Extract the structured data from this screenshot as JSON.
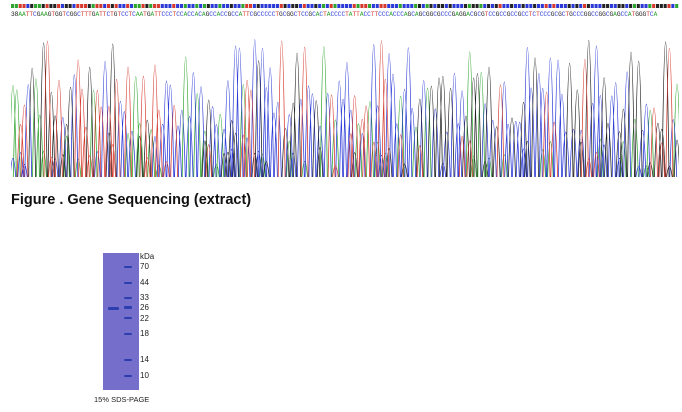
{
  "sequence": {
    "index_label": "38",
    "bases": "AATTCGAAGTGGTCGGCTTTGATTCTGTCCTCAATGATTCCCTCCACCACAGCCACCGCCATTCGCCCCCTGCGGCTCCGCACTACCCCTATTACCTTCCCACCCAGCAGCGGCGCCCGAGGACGCGTCCGCCGCCGCCTCTCCCGCGCTGCCCGGCCGGCGAGCCATGGGTCA",
    "base_colors": {
      "A": "#2fa52f",
      "C": "#2b3ad6",
      "G": "#222222",
      "T": "#d63a2f"
    }
  },
  "figure_caption": "Figure . Gene Sequencing (extract)",
  "gel": {
    "unit_label": "kDa",
    "markers": [
      "70",
      "44",
      "33",
      "26",
      "22",
      "18",
      "14",
      "10"
    ],
    "caption": "15% SDS-PAGE",
    "colors": {
      "background": "#7b74cf",
      "band": "#2d3fb0"
    }
  }
}
